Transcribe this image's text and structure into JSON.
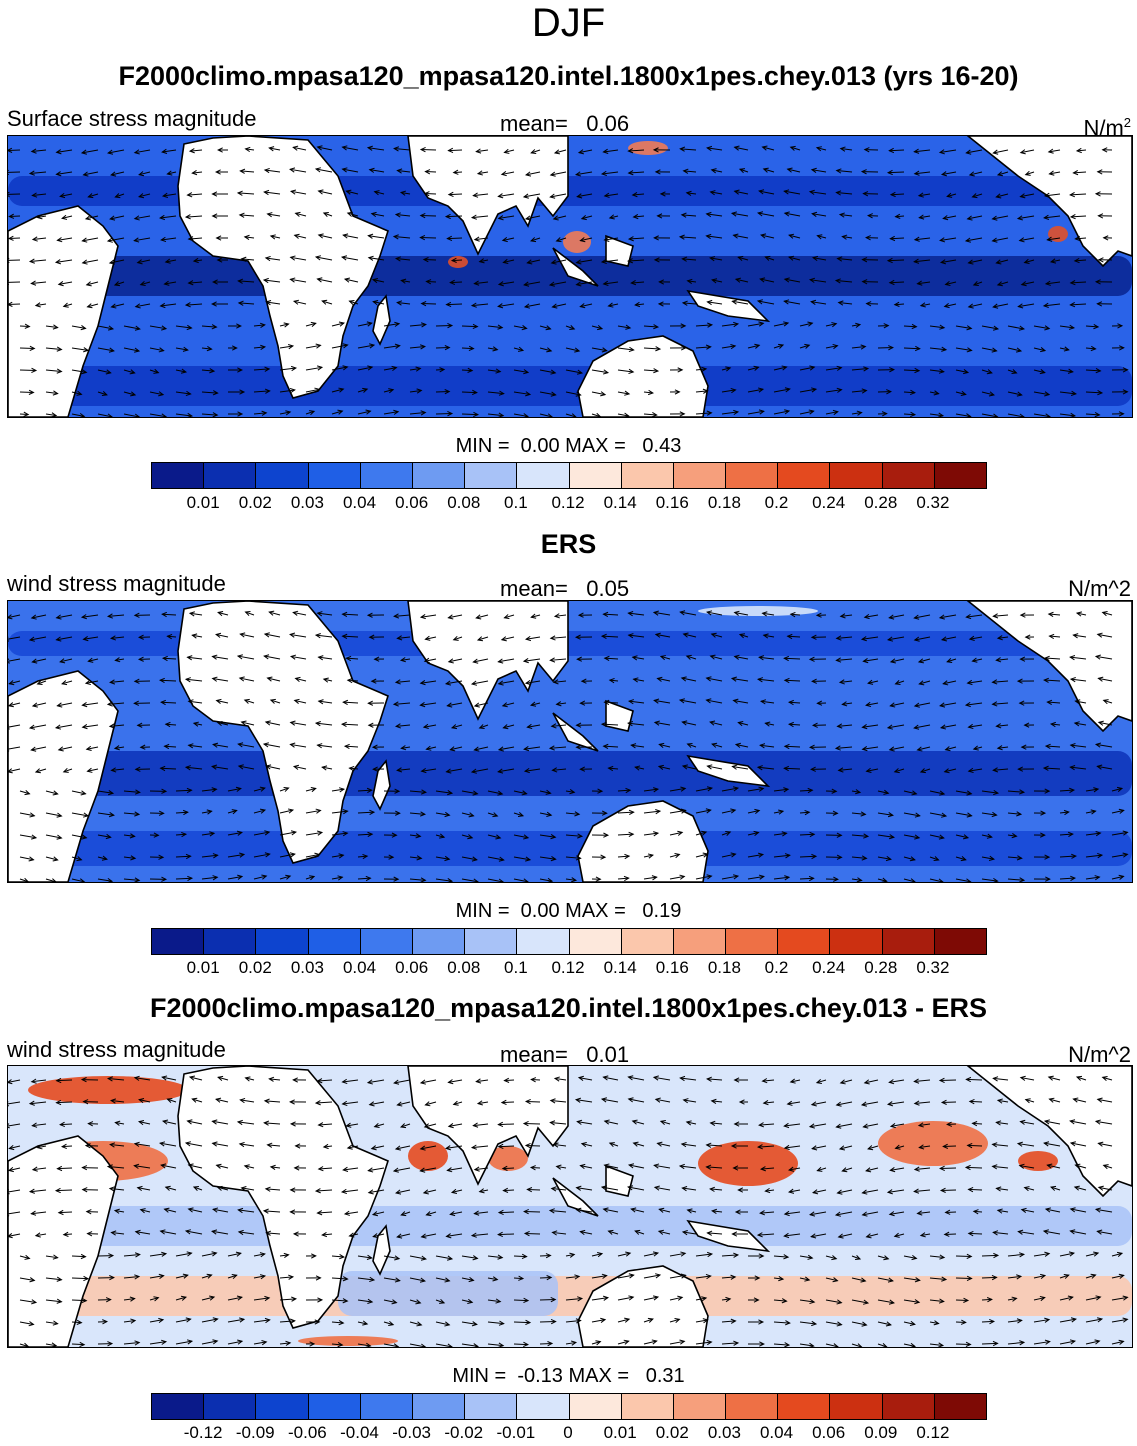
{
  "figure": {
    "season": "DJF"
  },
  "panels": [
    {
      "id": "model",
      "title": "F2000climo.mpasa120_mpasa120.intel.1800x1pes.chey.013 (yrs 16-20)",
      "left_string": "Surface stress magnitude",
      "mean_label": "mean=",
      "mean_value": "0.06",
      "units": "N/m",
      "units_sup": "2",
      "min_label": "MIN =",
      "min_value": "0.00",
      "max_label": "MAX =",
      "max_value": "0.43",
      "colorbar": {
        "colors": [
          "#0a1a8a",
          "#0b2fb0",
          "#0d44cf",
          "#1f5fe6",
          "#3e79ee",
          "#6e9bf2",
          "#a8c2f7",
          "#d8e5fb",
          "#fde8dc",
          "#fbc7ac",
          "#f69f7c",
          "#ee7045",
          "#e44a1f",
          "#cc3011",
          "#a81d0d",
          "#7e0a05"
        ],
        "labels": [
          "0.01",
          "0.02",
          "0.03",
          "0.04",
          "0.06",
          "0.08",
          "0.1",
          "0.12",
          "0.14",
          "0.16",
          "0.18",
          "0.2",
          "0.24",
          "0.28",
          "0.32"
        ]
      },
      "field_summary": {
        "background": "#2a63e8",
        "dark_bands": [
          "#0d36c2",
          "#08238f"
        ],
        "strong_stress_color": "#ef7a55",
        "max_color": "#e0502a"
      }
    },
    {
      "id": "obs",
      "title": "ERS",
      "left_string": "wind stress magnitude",
      "mean_label": "mean=",
      "mean_value": "0.05",
      "units": "N/m^2",
      "units_sup": "",
      "min_label": "MIN =",
      "min_value": "0.00",
      "max_label": "MAX =",
      "max_value": "0.19",
      "colorbar": {
        "colors": [
          "#0a1a8a",
          "#0b2fb0",
          "#0d44cf",
          "#1f5fe6",
          "#3e79ee",
          "#6e9bf2",
          "#a8c2f7",
          "#d8e5fb",
          "#fde8dc",
          "#fbc7ac",
          "#f69f7c",
          "#ee7045",
          "#e44a1f",
          "#cc3011",
          "#a81d0d",
          "#7e0a05"
        ],
        "labels": [
          "0.01",
          "0.02",
          "0.03",
          "0.04",
          "0.06",
          "0.08",
          "0.1",
          "0.12",
          "0.14",
          "0.16",
          "0.18",
          "0.2",
          "0.24",
          "0.28",
          "0.32"
        ]
      },
      "field_summary": {
        "background": "#3a72ec",
        "dark_bands": [
          "#1646d6",
          "#0d33b8"
        ],
        "strong_stress_color": "#a8c2f7",
        "max_color": "#d8e5fb"
      }
    },
    {
      "id": "diff",
      "title": "F2000climo.mpasa120_mpasa120.intel.1800x1pes.chey.013 - ERS",
      "left_string": "wind stress magnitude",
      "mean_label": "mean=",
      "mean_value": "0.01",
      "units": "N/m^2",
      "units_sup": "",
      "min_label": "MIN =",
      "min_value": "-0.13",
      "max_label": "MAX =",
      "max_value": "0.31",
      "colorbar": {
        "colors": [
          "#0a1a8a",
          "#0b2fb0",
          "#0d44cf",
          "#1f5fe6",
          "#3e79ee",
          "#6e9bf2",
          "#a8c2f7",
          "#d8e5fb",
          "#fde8dc",
          "#fbc7ac",
          "#f69f7c",
          "#ee7045",
          "#e44a1f",
          "#cc3011",
          "#a81d0d",
          "#7e0a05"
        ],
        "labels": [
          "-0.12",
          "-0.09",
          "-0.06",
          "-0.04",
          "-0.03",
          "-0.02",
          "-0.01",
          "0",
          "0.01",
          "0.02",
          "0.03",
          "0.04",
          "0.06",
          "0.09",
          "0.12"
        ]
      },
      "field_summary": {
        "background": "#d9e6fb",
        "dark_bands": [
          "#a8c2f7",
          "#fbc7ac"
        ],
        "strong_stress_color": "#ee7045",
        "max_color": "#e44a1f"
      }
    }
  ]
}
